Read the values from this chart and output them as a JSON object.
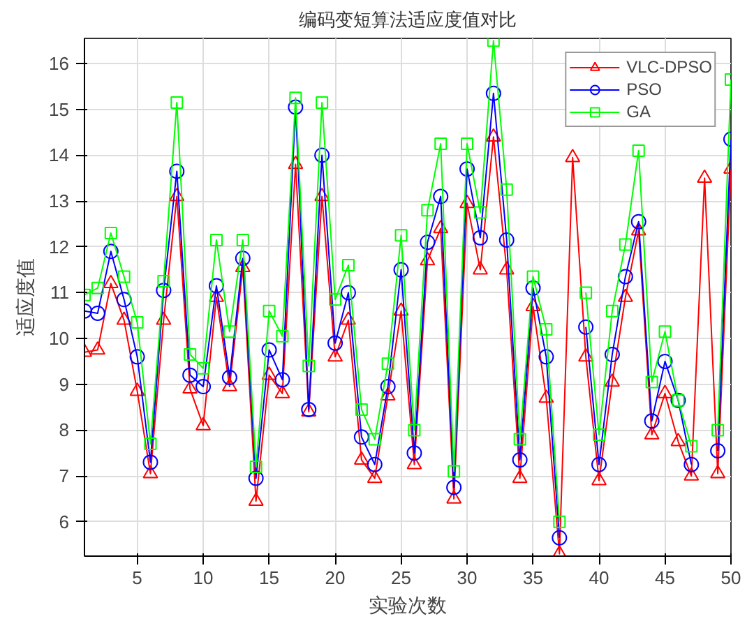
{
  "chart_data": {
    "type": "line",
    "title": "编码变短算法适应度值对比",
    "xlabel": "实验次数",
    "ylabel": "适应度值",
    "x": [
      1,
      2,
      3,
      4,
      5,
      6,
      7,
      8,
      9,
      10,
      11,
      12,
      13,
      14,
      15,
      16,
      17,
      18,
      19,
      20,
      21,
      22,
      23,
      24,
      25,
      26,
      27,
      28,
      29,
      30,
      31,
      32,
      33,
      34,
      35,
      36,
      37,
      38,
      39,
      40,
      41,
      42,
      43,
      44,
      45,
      46,
      47,
      48,
      49,
      50
    ],
    "xlim": [
      1,
      50
    ],
    "xticks": [
      5,
      10,
      15,
      20,
      25,
      30,
      35,
      40,
      45,
      50
    ],
    "ylim": [
      5.25,
      16.55
    ],
    "yticks": [
      6,
      7,
      8,
      9,
      10,
      11,
      12,
      13,
      14,
      15,
      16
    ],
    "grid": true,
    "legend": "top right",
    "line_style": "solid",
    "series": [
      {
        "name": "VLC-DPSO",
        "color": "#ff0000",
        "marker": "triangle",
        "values": [
          9.7,
          9.75,
          11.2,
          10.4,
          8.85,
          7.05,
          10.4,
          13.1,
          8.9,
          8.1,
          10.9,
          8.95,
          11.55,
          6.45,
          9.2,
          8.8,
          13.8,
          8.4,
          13.1,
          9.6,
          10.4,
          7.35,
          6.95,
          8.75,
          10.6,
          7.25,
          11.7,
          12.4,
          6.5,
          12.95,
          11.5,
          14.4,
          11.5,
          6.95,
          10.7,
          8.7,
          5.3,
          13.95,
          9.6,
          6.9,
          9.05,
          10.9,
          12.35,
          7.9,
          8.8,
          7.75,
          7.0,
          13.5,
          7.05,
          13.7
        ]
      },
      {
        "name": "PSO",
        "color": "#0000ff",
        "marker": "circle",
        "values": [
          10.6,
          10.55,
          11.9,
          10.85,
          9.6,
          7.3,
          11.05,
          13.65,
          9.2,
          8.95,
          11.15,
          9.15,
          11.75,
          6.95,
          9.75,
          9.1,
          15.05,
          8.45,
          14.0,
          9.9,
          11.0,
          7.85,
          7.25,
          8.95,
          11.5,
          7.5,
          12.1,
          13.1,
          6.75,
          13.7,
          12.2,
          15.35,
          12.15,
          7.35,
          11.1,
          9.6,
          5.65,
          null,
          10.25,
          7.25,
          9.65,
          11.35,
          12.55,
          8.2,
          9.5,
          8.65,
          7.25,
          null,
          7.55,
          14.35
        ]
      },
      {
        "name": "GA",
        "color": "#00ff00",
        "marker": "square",
        "values": [
          10.95,
          11.1,
          12.3,
          11.35,
          10.35,
          7.7,
          11.25,
          15.15,
          9.65,
          9.35,
          12.15,
          10.15,
          12.15,
          7.2,
          10.6,
          10.05,
          15.25,
          9.4,
          15.15,
          10.85,
          11.6,
          8.45,
          7.8,
          9.45,
          12.25,
          8.0,
          12.8,
          14.25,
          7.1,
          14.25,
          12.75,
          16.5,
          13.25,
          7.8,
          11.35,
          10.2,
          6.0,
          null,
          11.0,
          7.9,
          10.6,
          12.05,
          14.1,
          9.05,
          10.15,
          8.65,
          7.65,
          null,
          8.0,
          15.65
        ]
      }
    ]
  }
}
